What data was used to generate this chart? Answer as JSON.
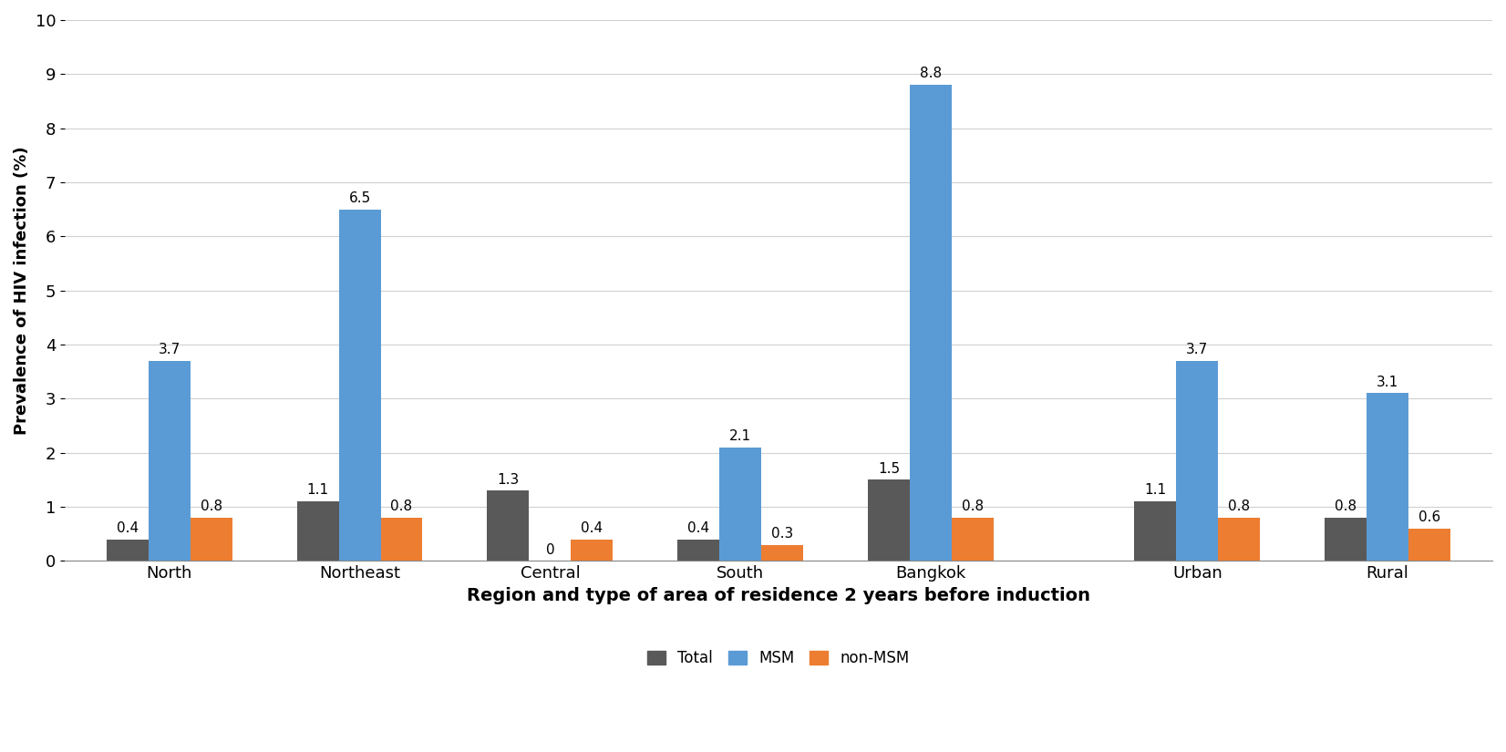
{
  "categories": [
    "North",
    "Northeast",
    "Central",
    "South",
    "Bangkok",
    "Urban",
    "Rural"
  ],
  "total": [
    0.4,
    1.1,
    1.3,
    0.4,
    1.5,
    1.1,
    0.8
  ],
  "msm": [
    3.7,
    6.5,
    0.0,
    2.1,
    8.8,
    3.7,
    3.1
  ],
  "non_msm": [
    0.8,
    0.8,
    0.4,
    0.3,
    0.8,
    0.8,
    0.6
  ],
  "color_total": "#595959",
  "color_msm": "#5B9BD5",
  "color_non_msm": "#ED7D31",
  "ylabel": "Prevalence of HIV infection (%)",
  "xlabel": "Region and type of area of residence 2 years before induction",
  "ylim": [
    0,
    10
  ],
  "yticks": [
    0,
    1,
    2,
    3,
    4,
    5,
    6,
    7,
    8,
    9,
    10
  ],
  "legend_labels": [
    "Total",
    "MSM",
    "non-MSM"
  ],
  "bar_width": 0.22,
  "group_centers": [
    0.0,
    1.0,
    2.0,
    3.0,
    4.0,
    5.4,
    6.4
  ],
  "tick_fontsize": 13,
  "xlabel_fontsize": 14,
  "ylabel_fontsize": 13,
  "legend_fontsize": 12,
  "value_fontsize": 11
}
